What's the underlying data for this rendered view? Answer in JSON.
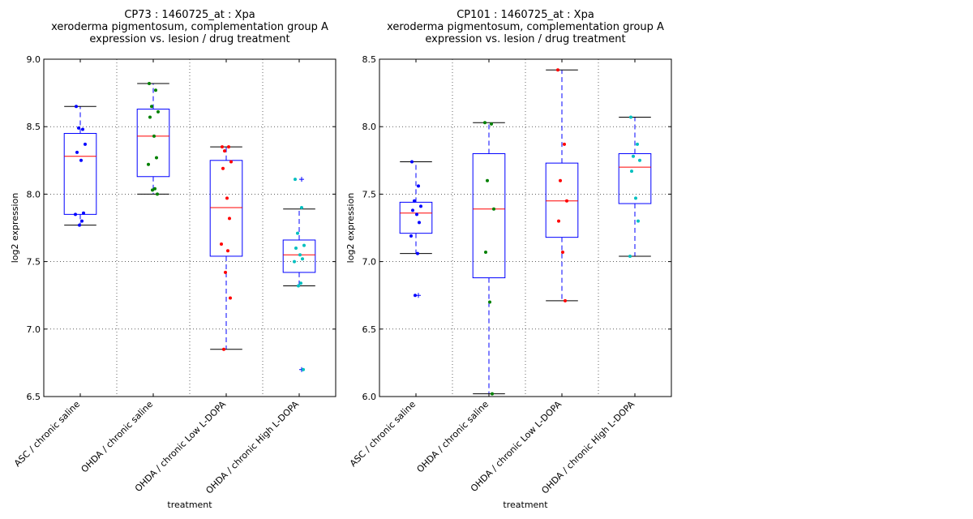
{
  "chart_data": [
    {
      "type": "box",
      "title": [
        "CP73 : 1460725_at : Xpa",
        "xeroderma pigmentosum, complementation group A",
        "expression vs. lesion / drug treatment"
      ],
      "xlabel": "treatment",
      "ylabel": "log2 expression",
      "ylim": [
        6.5,
        9.0
      ],
      "yticks": [
        6.5,
        7.0,
        7.5,
        8.0,
        8.5,
        9.0
      ],
      "ytick_labels": [
        "6.5",
        "7.0",
        "7.5",
        "8.0",
        "8.5",
        "9.0"
      ],
      "grid": true,
      "categories": [
        "ASC / chronic saline",
        "OHDA / chronic saline",
        "OHDA / chronic Low L-DOPA",
        "OHDA / chronic High L-DOPA"
      ],
      "boxes": [
        {
          "q1": 7.85,
          "median": 8.28,
          "q3": 8.45,
          "whisker_low": 7.77,
          "whisker_high": 8.65,
          "outliers": []
        },
        {
          "q1": 8.13,
          "median": 8.43,
          "q3": 8.63,
          "whisker_low": 8.0,
          "whisker_high": 8.82,
          "outliers": []
        },
        {
          "q1": 7.54,
          "median": 7.9,
          "q3": 8.25,
          "whisker_low": 6.85,
          "whisker_high": 8.35,
          "outliers": []
        },
        {
          "q1": 7.42,
          "median": 7.55,
          "q3": 7.66,
          "whisker_low": 7.32,
          "whisker_high": 7.89,
          "outliers": [
            8.11,
            6.7
          ]
        }
      ],
      "points": [
        {
          "category": 0,
          "color": "#0000ff",
          "values": [
            8.65,
            8.48,
            8.49,
            8.37,
            8.31,
            8.25,
            7.86,
            7.85,
            7.8,
            7.77
          ]
        },
        {
          "category": 1,
          "color": "#008000",
          "values": [
            8.82,
            8.77,
            8.65,
            8.61,
            8.57,
            8.43,
            8.27,
            8.22,
            8.04,
            8.03,
            8.0
          ]
        },
        {
          "category": 2,
          "color": "#ff0000",
          "values": [
            8.35,
            8.35,
            8.32,
            8.24,
            8.19,
            7.97,
            7.82,
            7.63,
            7.58,
            7.42,
            7.23,
            6.85
          ]
        },
        {
          "category": 3,
          "color": "#00bfbf",
          "values": [
            8.11,
            7.9,
            7.71,
            7.62,
            7.6,
            7.55,
            7.52,
            7.5,
            7.34,
            7.32,
            6.7
          ]
        }
      ]
    },
    {
      "type": "box",
      "title": [
        "CP101 : 1460725_at : Xpa",
        "xeroderma pigmentosum, complementation group A",
        "expression vs. lesion / drug treatment"
      ],
      "xlabel": "treatment",
      "ylabel": "log2 expression",
      "ylim": [
        6.0,
        8.5
      ],
      "yticks": [
        6.0,
        6.5,
        7.0,
        7.5,
        8.0,
        8.5
      ],
      "ytick_labels": [
        "6.0",
        "6.5",
        "7.0",
        "7.5",
        "8.0",
        "8.5"
      ],
      "grid": true,
      "categories": [
        "ASC / chronic saline",
        "OHDA / chronic saline",
        "OHDA / chronic Low L-DOPA",
        "OHDA / chronic High L-DOPA"
      ],
      "boxes": [
        {
          "q1": 7.21,
          "median": 7.36,
          "q3": 7.44,
          "whisker_low": 7.06,
          "whisker_high": 7.74,
          "outliers": [
            6.75
          ]
        },
        {
          "q1": 6.88,
          "median": 7.39,
          "q3": 7.8,
          "whisker_low": 6.02,
          "whisker_high": 8.03,
          "outliers": []
        },
        {
          "q1": 7.18,
          "median": 7.45,
          "q3": 7.73,
          "whisker_low": 6.71,
          "whisker_high": 8.42,
          "outliers": []
        },
        {
          "q1": 7.43,
          "median": 7.7,
          "q3": 7.8,
          "whisker_low": 7.04,
          "whisker_high": 8.07,
          "outliers": []
        }
      ],
      "points": [
        {
          "category": 0,
          "color": "#0000ff",
          "values": [
            7.74,
            7.56,
            7.45,
            7.41,
            7.38,
            7.35,
            7.29,
            7.19,
            7.06,
            6.75
          ]
        },
        {
          "category": 1,
          "color": "#008000",
          "values": [
            8.03,
            8.02,
            7.6,
            7.39,
            7.07,
            6.7,
            6.02
          ]
        },
        {
          "category": 2,
          "color": "#ff0000",
          "values": [
            8.42,
            7.87,
            7.6,
            7.45,
            7.3,
            7.07,
            6.71
          ]
        },
        {
          "category": 3,
          "color": "#00bfbf",
          "values": [
            8.07,
            7.87,
            7.78,
            7.75,
            7.67,
            7.47,
            7.3,
            7.04
          ]
        }
      ]
    }
  ],
  "colors": {
    "box": "#0000ff",
    "median": "#ff0000",
    "whisker": "#0000ff",
    "cap": "#000000",
    "grid": "#000000"
  }
}
